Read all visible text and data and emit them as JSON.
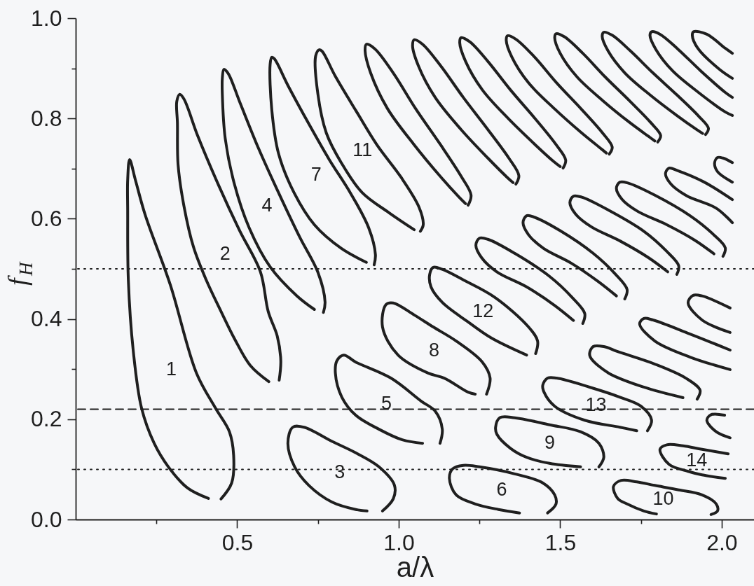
{
  "chart_data": {
    "type": "line",
    "xlabel": "a/λ",
    "ylabel": "f$_{H}$",
    "line_style": "solid",
    "xlim": [
      0,
      2.1
    ],
    "ylim": [
      0,
      1
    ],
    "xticks": [
      {
        "value": 0.25,
        "label": null
      },
      0.5,
      {
        "value": 0.75,
        "label": null
      },
      {
        "value": 1,
        "label": "1.0"
      },
      {
        "value": 1.25,
        "label": null
      },
      1.5,
      {
        "value": 1.75,
        "label": null
      },
      {
        "value": 2,
        "label": "2.0"
      }
    ],
    "yticks": [
      {
        "value": 0,
        "label": "0.0"
      },
      {
        "value": 0.1,
        "label": null
      },
      0.2,
      {
        "value": 0.3,
        "label": null
      },
      0.4,
      {
        "value": 0.5,
        "label": null
      },
      0.6,
      {
        "value": 0.7,
        "label": null
      },
      0.8,
      {
        "value": 0.9,
        "label": null
      },
      {
        "value": 1,
        "label": "1.0"
      }
    ],
    "series": [
      {
        "name": "1",
        "color": "#1f1f1f",
        "x": [
          0.45,
          0.483,
          0.489,
          0.476,
          0.433,
          0.374,
          0.293,
          0.215,
          0.185,
          0.167,
          0.161,
          0.161,
          0.163,
          0.178,
          0.204,
          0.243,
          0.287,
          0.346,
          0.411
        ],
        "values": [
          0.041,
          0.073,
          0.128,
          0.175,
          0.222,
          0.292,
          0.468,
          0.608,
          0.677,
          0.718,
          0.677,
          0.617,
          0.478,
          0.338,
          0.222,
          0.152,
          0.105,
          0.063,
          0.042
        ]
      },
      {
        "name": "2",
        "color": "#1f1f1f",
        "x": [
          0.63,
          0.635,
          0.624,
          0.596,
          0.572,
          0.507,
          0.443,
          0.378,
          0.335,
          0.322,
          0.313,
          0.315,
          0.317,
          0.335,
          0.365,
          0.404,
          0.45,
          0.493,
          0.541,
          0.598
        ],
        "values": [
          0.278,
          0.317,
          0.366,
          0.415,
          0.494,
          0.577,
          0.666,
          0.765,
          0.839,
          0.848,
          0.834,
          0.791,
          0.708,
          0.626,
          0.543,
          0.478,
          0.415,
          0.359,
          0.307,
          0.275
        ]
      },
      {
        "name": "4",
        "color": "#1f1f1f",
        "x": [
          0.767,
          0.772,
          0.75,
          0.693,
          0.628,
          0.565,
          0.509,
          0.472,
          0.459,
          0.454,
          0.454,
          0.463,
          0.491,
          0.537,
          0.602,
          0.685,
          0.739
        ],
        "values": [
          0.413,
          0.434,
          0.493,
          0.564,
          0.652,
          0.742,
          0.831,
          0.89,
          0.898,
          0.88,
          0.848,
          0.76,
          0.67,
          0.582,
          0.504,
          0.446,
          0.419
        ]
      },
      {
        "name": "7",
        "color": "#1f1f1f",
        "x": [
          0.924,
          0.928,
          0.907,
          0.85,
          0.785,
          0.722,
          0.657,
          0.615,
          0.607,
          0.602,
          0.607,
          0.628,
          0.676,
          0.739,
          0.822,
          0.9
        ],
        "values": [
          0.508,
          0.528,
          0.582,
          0.652,
          0.718,
          0.789,
          0.866,
          0.919,
          0.922,
          0.908,
          0.818,
          0.73,
          0.652,
          0.588,
          0.541,
          0.513
        ]
      },
      {
        "name": "11",
        "color": "#1f1f1f",
        "x": [
          1.067,
          1.076,
          1.063,
          1.007,
          0.933,
          0.87,
          0.804,
          0.763,
          0.754,
          0.743,
          0.75,
          0.776,
          0.822,
          0.887,
          0.97,
          1.048
        ],
        "values": [
          0.575,
          0.588,
          0.623,
          0.683,
          0.747,
          0.813,
          0.884,
          0.934,
          0.937,
          0.925,
          0.848,
          0.771,
          0.712,
          0.652,
          0.612,
          0.578
        ]
      },
      {
        "color": "#1f1f1f",
        "x": [
          1.215,
          1.224,
          1.193,
          1.128,
          1.052,
          0.983,
          0.926,
          0.9,
          0.896,
          0.913,
          0.965,
          1.046,
          1.128,
          1.187,
          1.207
        ],
        "values": [
          0.627,
          0.647,
          0.685,
          0.749,
          0.82,
          0.891,
          0.939,
          0.948,
          0.935,
          0.891,
          0.82,
          0.749,
          0.685,
          0.643,
          0.63
        ]
      },
      {
        "color": "#1f1f1f",
        "x": [
          1.363,
          1.372,
          1.341,
          1.276,
          1.2,
          1.13,
          1.074,
          1.048,
          1.043,
          1.061,
          1.113,
          1.193,
          1.276,
          1.335,
          1.354
        ],
        "values": [
          0.669,
          0.686,
          0.721,
          0.778,
          0.842,
          0.905,
          0.948,
          0.957,
          0.945,
          0.905,
          0.842,
          0.778,
          0.721,
          0.683,
          0.672
        ]
      },
      {
        "color": "#1f1f1f",
        "x": [
          1.509,
          1.517,
          1.487,
          1.422,
          1.346,
          1.276,
          1.22,
          1.193,
          1.189,
          1.207,
          1.259,
          1.339,
          1.422,
          1.48,
          1.5
        ],
        "values": [
          0.701,
          0.717,
          0.748,
          0.8,
          0.857,
          0.914,
          0.953,
          0.961,
          0.951,
          0.914,
          0.857,
          0.8,
          0.748,
          0.714,
          0.704
        ]
      },
      {
        "color": "#1f1f1f",
        "x": [
          1.652,
          1.661,
          1.63,
          1.565,
          1.489,
          1.42,
          1.363,
          1.337,
          1.333,
          1.35,
          1.402,
          1.483,
          1.565,
          1.624,
          1.643
        ],
        "values": [
          0.729,
          0.743,
          0.772,
          0.819,
          0.871,
          0.923,
          0.958,
          0.965,
          0.956,
          0.923,
          0.871,
          0.819,
          0.772,
          0.741,
          0.731
        ]
      },
      {
        "color": "#1f1f1f",
        "x": [
          1.802,
          1.811,
          1.78,
          1.715,
          1.639,
          1.57,
          1.513,
          1.487,
          1.483,
          1.5,
          1.552,
          1.633,
          1.715,
          1.774,
          1.793
        ],
        "values": [
          0.753,
          0.766,
          0.792,
          0.835,
          0.883,
          0.93,
          0.963,
          0.969,
          0.961,
          0.93,
          0.883,
          0.835,
          0.792,
          0.764,
          0.755
        ]
      },
      {
        "color": "#1f1f1f",
        "x": [
          1.95,
          1.959,
          1.928,
          1.863,
          1.787,
          1.717,
          1.661,
          1.635,
          1.63,
          1.648,
          1.7,
          1.78,
          1.863,
          1.922,
          1.941
        ],
        "values": [
          0.768,
          0.78,
          0.805,
          0.846,
          0.891,
          0.935,
          0.966,
          0.972,
          0.964,
          0.935,
          0.891,
          0.846,
          0.805,
          0.778,
          0.77
        ]
      },
      {
        "color": "#1f1f1f",
        "x": [
          2.033,
          2.011,
          1.935,
          1.865,
          1.809,
          1.783,
          1.778,
          1.796,
          1.848,
          1.928,
          2.011,
          2.033
        ],
        "values": [
          0.842,
          0.852,
          0.895,
          0.938,
          0.968,
          0.973,
          0.966,
          0.938,
          0.895,
          0.852,
          0.813,
          0.806
        ]
      },
      {
        "color": "#1f1f1f",
        "x": [
          2.033,
          2.011,
          1.954,
          1.913,
          1.909,
          1.926,
          1.993,
          2.033
        ],
        "values": [
          0.93,
          0.94,
          0.968,
          0.973,
          0.966,
          0.94,
          0.898,
          0.88
        ]
      },
      {
        "name": "3",
        "color": "#1f1f1f",
        "x": [
          0.95,
          0.983,
          0.987,
          0.939,
          0.867,
          0.793,
          0.707,
          0.672,
          0.657,
          0.678,
          0.722,
          0.793,
          0.867,
          0.902
        ],
        "values": [
          0.017,
          0.041,
          0.068,
          0.105,
          0.133,
          0.156,
          0.184,
          0.184,
          0.152,
          0.105,
          0.068,
          0.035,
          0.02,
          0.017
        ]
      },
      {
        "name": "5",
        "color": "#1f1f1f",
        "x": [
          1.128,
          1.135,
          1.113,
          1.07,
          0.976,
          0.867,
          0.83,
          0.809,
          0.804,
          0.824,
          0.867,
          0.939,
          1.011,
          1.074
        ],
        "values": [
          0.152,
          0.18,
          0.216,
          0.236,
          0.282,
          0.314,
          0.328,
          0.317,
          0.292,
          0.244,
          0.208,
          0.18,
          0.159,
          0.152
        ]
      },
      {
        "name": "8",
        "color": "#1f1f1f",
        "x": [
          1.272,
          1.283,
          1.259,
          1.178,
          1.107,
          1.048,
          0.983,
          0.961,
          0.95,
          0.998,
          1.091,
          1.141,
          1.215,
          1.237
        ],
        "values": [
          0.25,
          0.282,
          0.314,
          0.356,
          0.384,
          0.408,
          0.432,
          0.429,
          0.384,
          0.328,
          0.292,
          0.282,
          0.254,
          0.25
        ]
      },
      {
        "name": "12",
        "color": "#1f1f1f",
        "x": [
          1.424,
          1.43,
          1.402,
          1.298,
          1.2,
          1.135,
          1.107,
          1.096,
          1.1,
          1.135,
          1.215,
          1.287,
          1.396
        ],
        "values": [
          0.331,
          0.356,
          0.384,
          0.443,
          0.478,
          0.499,
          0.503,
          0.489,
          0.464,
          0.433,
          0.394,
          0.362,
          0.328
        ]
      },
      {
        "color": "#1f1f1f",
        "x": [
          1.57,
          1.576,
          1.537,
          1.467,
          1.359,
          1.276,
          1.25,
          1.239,
          1.257,
          1.304,
          1.396,
          1.483,
          1.541
        ],
        "values": [
          0.391,
          0.411,
          0.443,
          0.485,
          0.531,
          0.559,
          0.561,
          0.547,
          0.522,
          0.494,
          0.464,
          0.427,
          0.397
        ]
      },
      {
        "color": "#1f1f1f",
        "x": [
          1.7,
          1.707,
          1.67,
          1.602,
          1.5,
          1.42,
          1.396,
          1.385,
          1.402,
          1.448,
          1.535,
          1.617,
          1.674
        ],
        "values": [
          0.44,
          0.459,
          0.49,
          0.531,
          0.576,
          0.603,
          0.606,
          0.592,
          0.568,
          0.541,
          0.511,
          0.475,
          0.446
        ]
      },
      {
        "color": "#1f1f1f",
        "x": [
          1.861,
          1.867,
          1.828,
          1.759,
          1.65,
          1.567,
          1.541,
          1.53,
          1.548,
          1.596,
          1.687,
          1.774,
          1.833
        ],
        "values": [
          0.489,
          0.506,
          0.536,
          0.575,
          0.617,
          0.643,
          0.645,
          0.632,
          0.609,
          0.584,
          0.555,
          0.522,
          0.494
        ]
      },
      {
        "color": "#1f1f1f",
        "x": [
          2.004,
          2.011,
          1.972,
          1.902,
          1.793,
          1.711,
          1.685,
          1.674,
          1.691,
          1.739,
          1.83,
          1.917,
          1.976
        ],
        "values": [
          0.525,
          0.542,
          0.57,
          0.606,
          0.647,
          0.671,
          0.673,
          0.661,
          0.639,
          0.615,
          0.588,
          0.557,
          0.53
        ]
      },
      {
        "color": "#1f1f1f",
        "x": [
          2.033,
          1.946,
          1.863,
          1.837,
          1.826,
          1.843,
          1.891,
          1.983,
          2.033
        ],
        "values": [
          0.638,
          0.673,
          0.696,
          0.701,
          0.69,
          0.669,
          0.646,
          0.621,
          0.592
        ]
      },
      {
        "color": "#1f1f1f",
        "x": [
          2.033,
          2.004,
          1.987,
          1.978,
          1.987,
          2.033
        ],
        "values": [
          0.712,
          0.721,
          0.722,
          0.711,
          0.694,
          0.673
        ]
      },
      {
        "name": "6",
        "color": "#1f1f1f",
        "x": [
          1.461,
          1.487,
          1.483,
          1.446,
          1.359,
          1.25,
          1.2,
          1.167,
          1.157,
          1.178,
          1.237,
          1.309,
          1.374
        ],
        "values": [
          0.013,
          0.031,
          0.049,
          0.073,
          0.091,
          0.105,
          0.108,
          0.101,
          0.082,
          0.049,
          0.031,
          0.02,
          0.013
        ]
      },
      {
        "name": "9",
        "color": "#1f1f1f",
        "x": [
          1.62,
          1.635,
          1.62,
          1.563,
          1.467,
          1.359,
          1.313,
          1.3,
          1.304,
          1.346,
          1.396,
          1.467,
          1.563
        ],
        "values": [
          0.105,
          0.124,
          0.152,
          0.175,
          0.189,
          0.203,
          0.203,
          0.184,
          0.17,
          0.142,
          0.124,
          0.112,
          0.105
        ]
      },
      {
        "name": "13",
        "color": "#1f1f1f",
        "x": [
          1.77,
          1.783,
          1.75,
          1.685,
          1.591,
          1.489,
          1.461,
          1.446,
          1.45,
          1.483,
          1.576,
          1.685,
          1.737
        ],
        "values": [
          0.177,
          0.198,
          0.226,
          0.244,
          0.264,
          0.282,
          0.282,
          0.268,
          0.254,
          0.226,
          0.198,
          0.184,
          0.177
        ]
      },
      {
        "color": "#1f1f1f",
        "x": [
          1.924,
          1.933,
          1.889,
          1.793,
          1.678,
          1.635,
          1.602,
          1.591,
          1.596,
          1.65,
          1.759,
          1.88
        ],
        "values": [
          0.24,
          0.258,
          0.282,
          0.31,
          0.335,
          0.345,
          0.345,
          0.331,
          0.321,
          0.292,
          0.264,
          0.243
        ]
      },
      {
        "color": "#1f1f1f",
        "x": [
          2.026,
          1.902,
          1.787,
          1.759,
          1.746,
          1.793,
          1.902,
          2.026
        ],
        "values": [
          0.338,
          0.37,
          0.398,
          0.401,
          0.39,
          0.356,
          0.324,
          0.299
        ]
      },
      {
        "color": "#1f1f1f",
        "x": [
          2.026,
          1.939,
          1.911,
          1.896,
          1.939,
          2.026
        ],
        "values": [
          0.422,
          0.446,
          0.447,
          0.432,
          0.398,
          0.373
        ]
      },
      {
        "name": "10",
        "color": "#1f1f1f",
        "x": [
          1.967,
          1.987,
          1.983,
          1.939,
          1.867,
          1.793,
          1.737,
          1.689,
          1.665,
          1.678,
          1.707,
          1.759,
          1.798
        ],
        "values": [
          0.01,
          0.017,
          0.031,
          0.049,
          0.059,
          0.068,
          0.075,
          0.078,
          0.066,
          0.042,
          0.031,
          0.017,
          0.011
        ]
      },
      {
        "name": "14",
        "color": "#1f1f1f",
        "x": [
          2.02,
          1.939,
          1.88,
          1.83,
          1.809,
          1.837,
          1.896,
          1.939,
          2.011
        ],
        "values": [
          0.131,
          0.14,
          0.147,
          0.149,
          0.14,
          0.11,
          0.096,
          0.089,
          0.082
        ]
      },
      {
        "color": "#1f1f1f",
        "x": [
          2.009,
          1.967,
          1.954,
          1.983,
          2.026
        ],
        "values": [
          0.208,
          0.209,
          0.198,
          0.175,
          0.163
        ]
      }
    ],
    "ref_lines": [
      {
        "axis": "y",
        "value": 0.5,
        "line_style": "dotted"
      },
      {
        "axis": "y",
        "value": 0.22,
        "line_style": "dashed"
      },
      {
        "axis": "y",
        "value": 0.1,
        "line_style": "dotted"
      }
    ]
  }
}
